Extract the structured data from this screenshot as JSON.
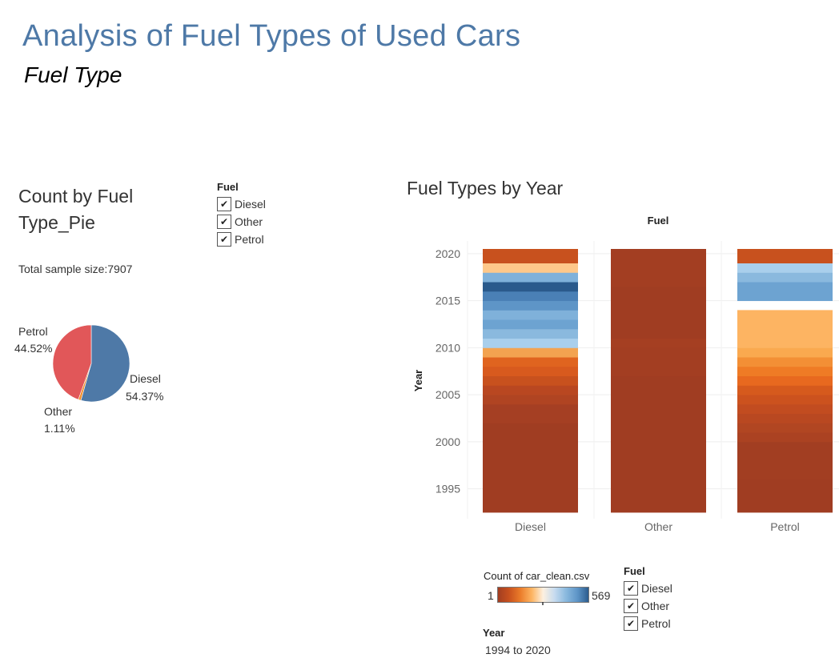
{
  "header": {
    "title": "Analysis of Fuel Types of Used Cars",
    "subtitle": "Fuel Type"
  },
  "pie_panel": {
    "title": "Count by Fuel Type_Pie",
    "sample_size_text": "Total sample size:7907"
  },
  "fuel_filter": {
    "title": "Fuel",
    "items": [
      {
        "label": "Diesel",
        "checked": true
      },
      {
        "label": "Other",
        "checked": true
      },
      {
        "label": "Petrol",
        "checked": true
      }
    ]
  },
  "bar_panel": {
    "title": "Fuel Types by Year"
  },
  "color_legend": {
    "title": "Count of car_clean.csv",
    "min_label": "1",
    "max_label": "569",
    "colors": [
      "#a03d22",
      "#c8511e",
      "#eb7c2a",
      "#fdb462",
      "#fdf0e0",
      "#c6dbef",
      "#8ab9de",
      "#5e95c7",
      "#2a5a8c"
    ]
  },
  "year_filter": {
    "title": "Year",
    "range_text": "1994 to 2020"
  },
  "chart_data": [
    {
      "type": "pie",
      "title": "Count by Fuel Type_Pie",
      "slices": [
        {
          "name": "Diesel",
          "label": "Diesel",
          "value": 54.37,
          "value_label": "54.37%",
          "color": "#4e79a7"
        },
        {
          "name": "Other",
          "label": "Other",
          "value": 1.11,
          "value_label": "1.11%",
          "color": "#f28e2b"
        },
        {
          "name": "Petrol",
          "label": "Petrol",
          "value": 44.52,
          "value_label": "44.52%",
          "color": "#e15759"
        }
      ]
    },
    {
      "type": "heatmap",
      "title": "Fuel Types by Year",
      "column_header": "Fuel",
      "xlabel": "",
      "ylabel": "Year",
      "categories": [
        "Diesel",
        "Other",
        "Petrol"
      ],
      "yticks": [
        1995,
        2000,
        2005,
        2010,
        2015,
        2020
      ],
      "ylim": [
        1992.5,
        2020.5
      ],
      "columns": [
        {
          "category": "Diesel",
          "cells": [
            {
              "from": 1992.5,
              "to": 2002.0,
              "color": "#a03d22"
            },
            {
              "from": 2002.0,
              "to": 2004.0,
              "color": "#a53f23"
            },
            {
              "from": 2004.0,
              "to": 2005.0,
              "color": "#b04422"
            },
            {
              "from": 2005.0,
              "to": 2006.0,
              "color": "#b94721"
            },
            {
              "from": 2006.0,
              "to": 2007.0,
              "color": "#c8511e"
            },
            {
              "from": 2007.0,
              "to": 2008.0,
              "color": "#d85a1e"
            },
            {
              "from": 2008.0,
              "to": 2009.0,
              "color": "#e0641f"
            },
            {
              "from": 2009.0,
              "to": 2010.0,
              "color": "#f3a350"
            },
            {
              "from": 2010.0,
              "to": 2011.0,
              "color": "#a9cfec"
            },
            {
              "from": 2011.0,
              "to": 2012.0,
              "color": "#8ab9de"
            },
            {
              "from": 2012.0,
              "to": 2013.0,
              "color": "#6da3d1"
            },
            {
              "from": 2013.0,
              "to": 2014.0,
              "color": "#7fb1da"
            },
            {
              "from": 2014.0,
              "to": 2015.0,
              "color": "#5e95c7"
            },
            {
              "from": 2015.0,
              "to": 2016.0,
              "color": "#4a80b6"
            },
            {
              "from": 2016.0,
              "to": 2017.0,
              "color": "#2a5a8c"
            },
            {
              "from": 2017.0,
              "to": 2018.0,
              "color": "#7fb1da"
            },
            {
              "from": 2018.0,
              "to": 2019.0,
              "color": "#fec88a"
            },
            {
              "from": 2019.0,
              "to": 2020.5,
              "color": "#c8511e"
            }
          ]
        },
        {
          "category": "Other",
          "cells": [
            {
              "from": 1992.5,
              "to": 2007.0,
              "color": "#a03d22"
            },
            {
              "from": 2007.0,
              "to": 2010.0,
              "color": "#a33e22"
            },
            {
              "from": 2010.0,
              "to": 2011.0,
              "color": "#a53f22"
            },
            {
              "from": 2011.0,
              "to": 2016.5,
              "color": "#a03d22"
            },
            {
              "from": 2016.5,
              "to": 2020.5,
              "color": "#a33e22"
            }
          ]
        },
        {
          "category": "Petrol",
          "cells": [
            {
              "from": 1992.5,
              "to": 1996.0,
              "color": "#a03d22"
            },
            {
              "from": 1996.0,
              "to": 2000.0,
              "color": "#a23e22"
            },
            {
              "from": 2000.0,
              "to": 2001.0,
              "color": "#ab4222"
            },
            {
              "from": 2001.0,
              "to": 2002.0,
              "color": "#b14622"
            },
            {
              "from": 2002.0,
              "to": 2003.0,
              "color": "#b94821"
            },
            {
              "from": 2003.0,
              "to": 2004.0,
              "color": "#c24c20"
            },
            {
              "from": 2004.0,
              "to": 2005.0,
              "color": "#cc521e"
            },
            {
              "from": 2005.0,
              "to": 2006.0,
              "color": "#d65a1d"
            },
            {
              "from": 2006.0,
              "to": 2007.0,
              "color": "#e8691f"
            },
            {
              "from": 2007.0,
              "to": 2008.0,
              "color": "#ef7b25"
            },
            {
              "from": 2008.0,
              "to": 2009.0,
              "color": "#f38f35"
            },
            {
              "from": 2009.0,
              "to": 2010.0,
              "color": "#faa94f"
            },
            {
              "from": 2010.0,
              "to": 2014.0,
              "color": "#fdb462"
            },
            {
              "from": 2015.0,
              "to": 2017.0,
              "color": "#6da3d1"
            },
            {
              "from": 2017.0,
              "to": 2018.0,
              "color": "#8ab9de"
            },
            {
              "from": 2018.0,
              "to": 2019.0,
              "color": "#a9cfec"
            },
            {
              "from": 2019.0,
              "to": 2020.5,
              "color": "#c8511e"
            }
          ]
        }
      ]
    }
  ]
}
